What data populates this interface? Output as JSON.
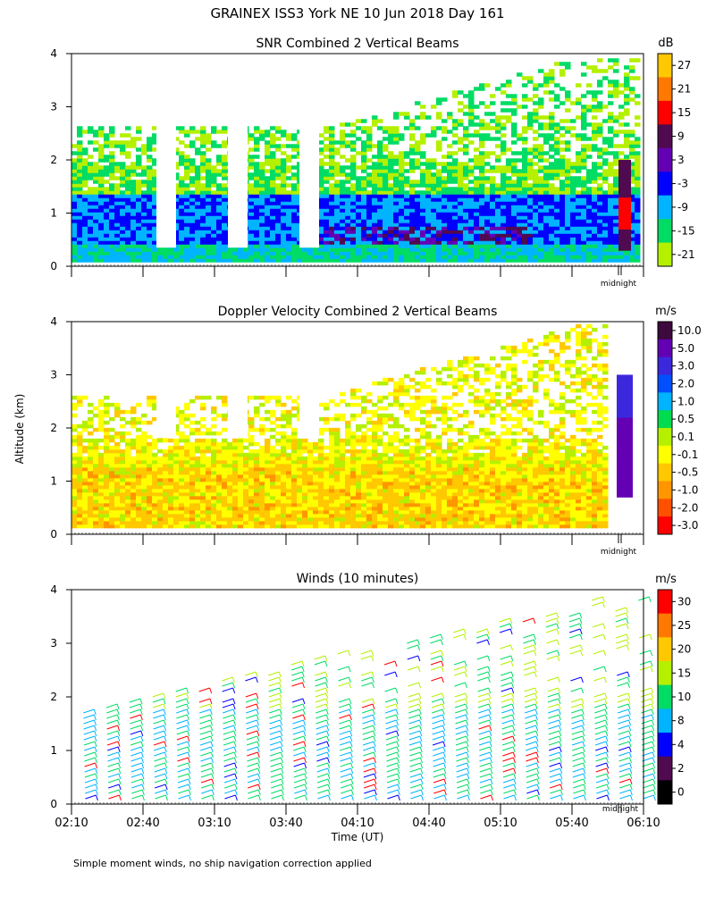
{
  "page": {
    "title": "GRAINEX ISS3 York NE  10 Jun 2018 Day 161",
    "footnote": "Simple moment winds, no ship navigation correction applied",
    "shared_ylabel": "Altitude (km)",
    "midnight_label": "midnight"
  },
  "chart_data": [
    {
      "type": "heatmap",
      "title": "SNR Combined 2 Vertical Beams",
      "xlabel": "",
      "ylabel": "Altitude (km)",
      "ylim": [
        0,
        4
      ],
      "yticks": [
        "0",
        "1",
        "2",
        "3",
        "4"
      ],
      "colorbar": {
        "unit": "dB",
        "ticks": [
          "27",
          "21",
          "15",
          "9",
          "3",
          "-3",
          "-9",
          "-15",
          "-21"
        ],
        "colors": [
          "#ffc800",
          "#ff7800",
          "#ff0000",
          "#500a50",
          "#6400b4",
          "#0000ff",
          "#00b4ff",
          "#00dc64",
          "#b4f000"
        ]
      }
    },
    {
      "type": "heatmap",
      "title": "Doppler Velocity Combined 2 Vertical Beams",
      "xlabel": "",
      "ylabel": "Altitude (km)",
      "ylim": [
        0,
        4
      ],
      "yticks": [
        "0",
        "1",
        "2",
        "3",
        "4"
      ],
      "colorbar": {
        "unit": "m/s",
        "ticks": [
          "10.0",
          "5.0",
          "3.0",
          "2.0",
          "1.0",
          "0.5",
          "0.1",
          "-0.1",
          "-0.5",
          "-1.0",
          "-2.0",
          "-3.0"
        ],
        "colors": [
          "#3c0a3c",
          "#6400b4",
          "#3c28dc",
          "#0050ff",
          "#00b4ff",
          "#00dc50",
          "#b4f000",
          "#ffff00",
          "#ffc800",
          "#ff9600",
          "#ff5000",
          "#ff0000"
        ]
      }
    },
    {
      "type": "scatter",
      "title": "Winds (10 minutes)",
      "xlabel": "Time (UT)",
      "ylabel": "Altitude (km)",
      "ylim": [
        0,
        4
      ],
      "yticks": [
        "0",
        "1",
        "2",
        "3",
        "4"
      ],
      "xticks": [
        "02:10",
        "02:40",
        "03:10",
        "03:40",
        "04:10",
        "04:40",
        "05:10",
        "05:40",
        "06:10"
      ],
      "colorbar": {
        "unit": "m/s",
        "ticks": [
          "30",
          "25",
          "20",
          "15",
          "10",
          "8",
          "4",
          "2",
          "0"
        ],
        "colors": [
          "#ff0000",
          "#ff7800",
          "#ffc800",
          "#b4f000",
          "#00dc64",
          "#00b4ff",
          "#0000ff",
          "#500a50",
          "#000000"
        ]
      }
    }
  ]
}
